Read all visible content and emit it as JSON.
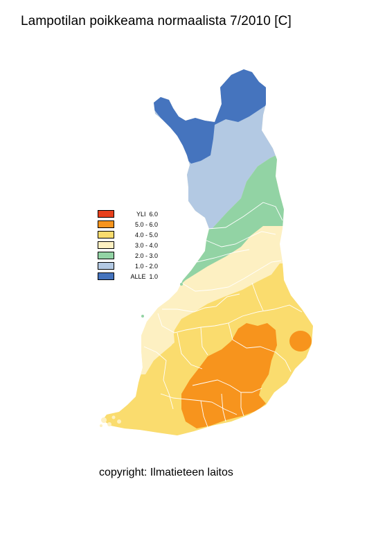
{
  "title": "Lampotilan poikkeama normaalista 7/2010 [C]",
  "copyright": "copyright: Ilmatieteen laitos",
  "legend": [
    {
      "label": "YLI  6.0",
      "color": "#e8401c"
    },
    {
      "label": "5.0 - 6.0",
      "color": "#f7941d"
    },
    {
      "label": "4.0 - 5.0",
      "color": "#fadc6e"
    },
    {
      "label": "3.0 - 4.0",
      "color": "#fdf0c2"
    },
    {
      "label": "2.0 - 3.0",
      "color": "#92d3a4"
    },
    {
      "label": "1.0 - 2.0",
      "color": "#b3c9e3"
    },
    {
      "label": "ALLE  1.0",
      "color": "#4574be"
    }
  ]
}
